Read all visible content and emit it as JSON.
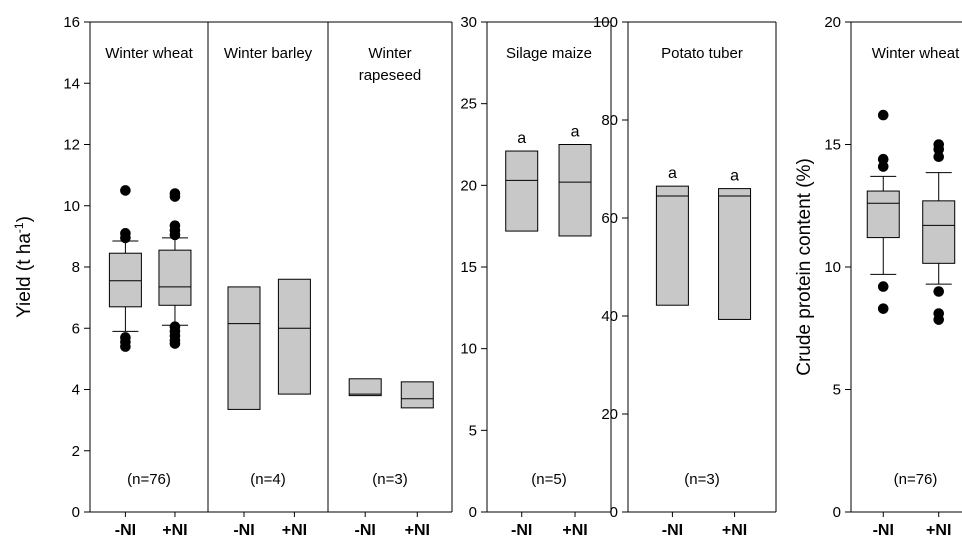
{
  "chart_data": [
    {
      "type": "box",
      "ylabel": "Yield (t ha-1)",
      "ylim": [
        0,
        16
      ],
      "yticks": [
        "0",
        "2",
        "4",
        "6",
        "8",
        "10",
        "12",
        "14",
        "16"
      ],
      "panels": [
        {
          "title": [
            "Winter wheat"
          ],
          "n_label": "(n=76)",
          "groups": [
            {
              "category": "-NI",
              "q1": 6.7,
              "median": 7.55,
              "q3": 8.45,
              "whisker_low": 5.9,
              "whisker_high": 8.85,
              "outliers": [
                5.4,
                5.55,
                5.7,
                8.95,
                9.1,
                10.5
              ]
            },
            {
              "category": "+NI",
              "q1": 6.75,
              "median": 7.35,
              "q3": 8.55,
              "whisker_low": 6.1,
              "whisker_high": 8.95,
              "outliers": [
                5.5,
                5.6,
                5.75,
                5.9,
                6.05,
                9.05,
                9.2,
                9.35,
                10.3,
                10.4
              ]
            }
          ]
        },
        {
          "title": [
            "Winter barley"
          ],
          "n_label": "(n=4)",
          "groups": [
            {
              "category": "-NI",
              "q1": 3.35,
              "median": 6.15,
              "q3": 7.35
            },
            {
              "category": "+NI",
              "q1": 3.85,
              "median": 6.0,
              "q3": 7.6
            }
          ]
        },
        {
          "title": [
            "Winter",
            "rapeseed"
          ],
          "n_label": "(n=3)",
          "groups": [
            {
              "category": "-NI",
              "q1": 3.8,
              "median": 3.85,
              "q3": 4.35
            },
            {
              "category": "+NI",
              "q1": 3.4,
              "median": 3.7,
              "q3": 4.25
            }
          ]
        }
      ]
    },
    {
      "type": "box",
      "ylim": [
        0,
        30
      ],
      "yticks": [
        "0",
        "5",
        "10",
        "15",
        "20",
        "25",
        "30"
      ],
      "panels": [
        {
          "title": [
            "Silage maize"
          ],
          "n_label": "(n=5)",
          "groups": [
            {
              "category": "-NI",
              "q1": 17.2,
              "median": 20.3,
              "q3": 22.1,
              "letter": "a"
            },
            {
              "category": "+NI",
              "q1": 16.9,
              "median": 20.2,
              "q3": 22.5,
              "letter": "a"
            }
          ]
        }
      ]
    },
    {
      "type": "box",
      "ylim": [
        0,
        100
      ],
      "yticks": [
        "0",
        "20",
        "40",
        "60",
        "80",
        "100"
      ],
      "panels": [
        {
          "title": [
            "Potato tuber"
          ],
          "n_label": "(n=3)",
          "groups": [
            {
              "category": "-NI",
              "q1": 42.2,
              "median": 64.5,
              "q3": 66.5,
              "letter": "a"
            },
            {
              "category": "+NI",
              "q1": 39.3,
              "median": 64.5,
              "q3": 66.0,
              "letter": "a"
            }
          ]
        }
      ]
    },
    {
      "type": "box",
      "ylabel": "Crude protein content (%)",
      "ylim": [
        0,
        20
      ],
      "yticks": [
        "0",
        "5",
        "10",
        "15",
        "20"
      ],
      "panels": [
        {
          "title": [
            "Winter wheat"
          ],
          "n_label": "(n=76)",
          "groups": [
            {
              "category": "-NI",
              "q1": 11.2,
              "median": 12.6,
              "q3": 13.1,
              "whisker_low": 9.7,
              "whisker_high": 13.7,
              "outliers": [
                8.3,
                9.2,
                14.1,
                14.4,
                16.2
              ]
            },
            {
              "category": "+NI",
              "q1": 10.15,
              "median": 11.7,
              "q3": 12.7,
              "whisker_low": 9.3,
              "whisker_high": 13.85,
              "outliers": [
                7.85,
                8.1,
                9.0,
                14.5,
                14.8,
                15.0
              ]
            }
          ]
        }
      ]
    }
  ]
}
